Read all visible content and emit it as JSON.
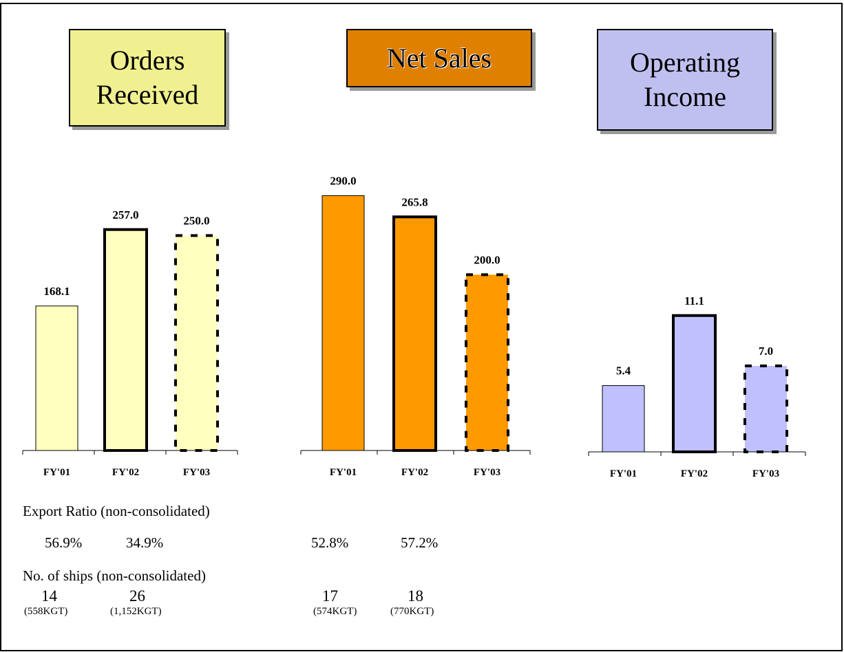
{
  "chart_data": [
    {
      "type": "bar",
      "title": "Orders Received",
      "title_color": "#f0f090",
      "categories": [
        "FY'01",
        "FY'02",
        "FY'03"
      ],
      "values": [
        168.1,
        257.0,
        250.0
      ],
      "value_labels": [
        "168.1",
        "257.0",
        "250.0"
      ],
      "color": "#ffffc0",
      "ylim": [
        0,
        320
      ],
      "border_styles": [
        "thin",
        "thick",
        "dashed"
      ]
    },
    {
      "type": "bar",
      "title": "Net Sales",
      "title_color": "#e08000",
      "categories": [
        "FY'01",
        "FY'02",
        "FY'03"
      ],
      "values": [
        290.0,
        265.8,
        200.0
      ],
      "value_labels": [
        "290.0",
        "265.8",
        "200.0"
      ],
      "color": "#ff9900",
      "ylim": [
        0,
        313
      ],
      "border_styles": [
        "thin",
        "thick",
        "dashed"
      ]
    },
    {
      "type": "bar",
      "title": "Operating Income",
      "title_color": "#c0c0f0",
      "categories": [
        "FY'01",
        "FY'02",
        "FY'03"
      ],
      "values": [
        5.4,
        11.1,
        7.0
      ],
      "value_labels": [
        "5.4",
        "11.1",
        "7.0"
      ],
      "color": "#c0c0ff",
      "ylim": [
        0,
        22.4
      ],
      "border_styles": [
        "thin",
        "thick",
        "dashed"
      ]
    }
  ],
  "export_ratio": {
    "label": "Export Ratio (non-consolidated)",
    "values": [
      "56.9%",
      "34.9%",
      "52.8%",
      "57.2%"
    ]
  },
  "ships": {
    "label": "No. of ships (non-consolidated)",
    "items": [
      {
        "count": "14",
        "gt": "(558KGT)"
      },
      {
        "count": "26",
        "gt": "(1,152KGT)"
      },
      {
        "count": "17",
        "gt": "(574KGT)"
      },
      {
        "count": "18",
        "gt": "(770KGT)"
      }
    ]
  }
}
